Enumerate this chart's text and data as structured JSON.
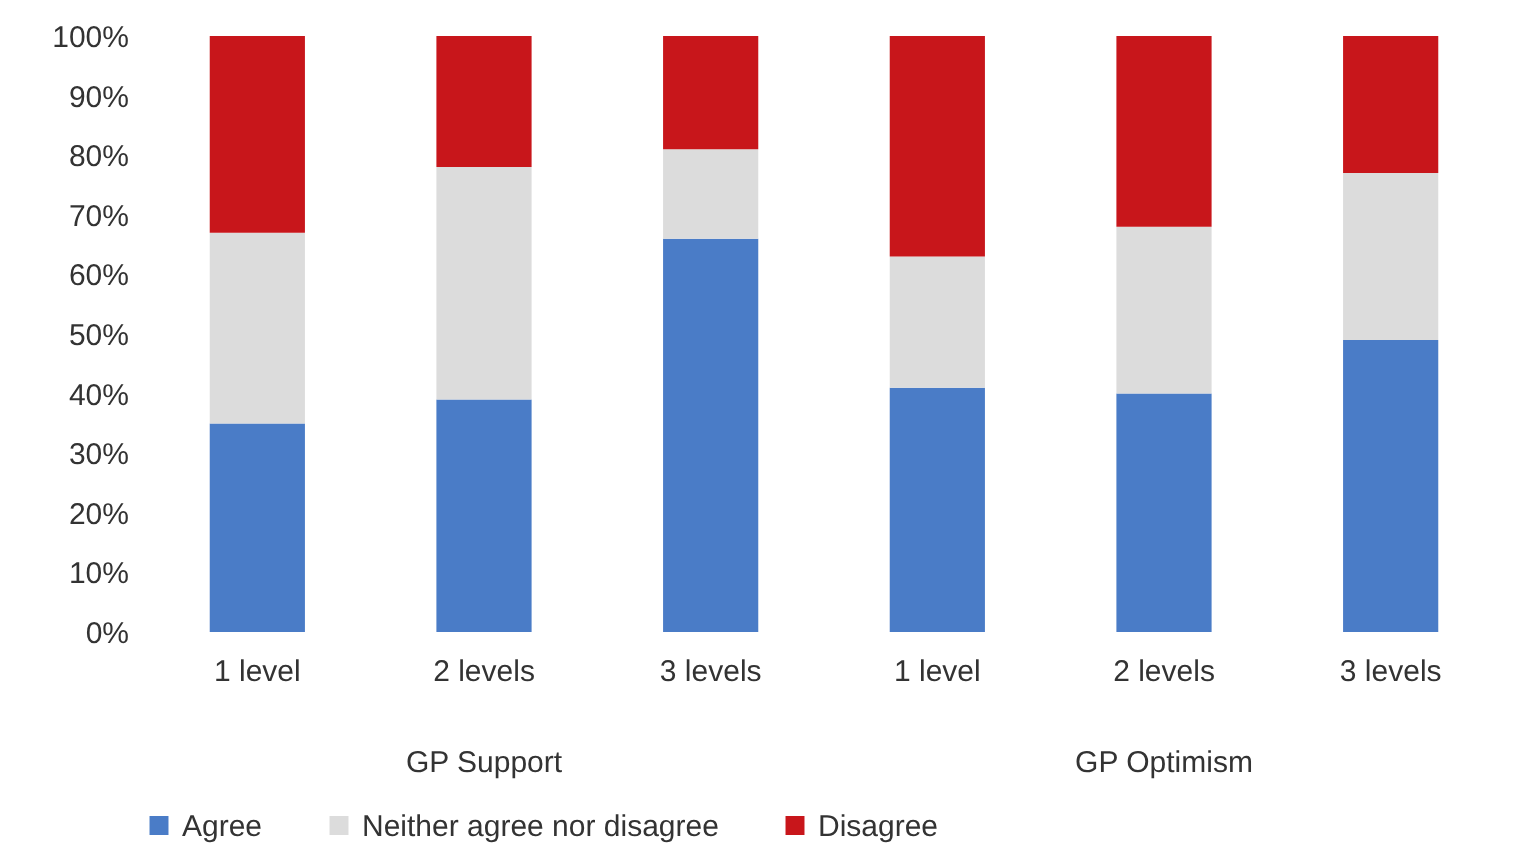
{
  "chart_data": {
    "type": "bar",
    "stacked": true,
    "categories": [
      "1 level",
      "2 levels",
      "3 levels",
      "1 level",
      "2 levels",
      "3 levels"
    ],
    "series": [
      {
        "name": "Agree",
        "color": "#4a7cc7",
        "values": [
          35,
          39,
          66,
          41,
          40,
          49
        ]
      },
      {
        "name": "Neither agree nor disagree",
        "color": "#dcdcdc",
        "values": [
          32,
          39,
          15,
          22,
          28,
          28
        ]
      },
      {
        "name": "Disagree",
        "color": "#c8161b",
        "values": [
          33,
          22,
          19,
          37,
          32,
          23
        ]
      }
    ],
    "ylim": [
      0,
      100
    ],
    "yticks": [
      {
        "value": 0,
        "label": "0%"
      },
      {
        "value": 10,
        "label": "10%"
      },
      {
        "value": 20,
        "label": "20%"
      },
      {
        "value": 30,
        "label": "30%"
      },
      {
        "value": 40,
        "label": "40%"
      },
      {
        "value": 50,
        "label": "50%"
      },
      {
        "value": 60,
        "label": "60%"
      },
      {
        "value": 70,
        "label": "70%"
      },
      {
        "value": 80,
        "label": "80%"
      },
      {
        "value": 90,
        "label": "90%"
      },
      {
        "value": 100,
        "label": "100%"
      }
    ],
    "annotations": [
      "GP Support",
      "GP Optimism"
    ],
    "legend": "bottom"
  }
}
